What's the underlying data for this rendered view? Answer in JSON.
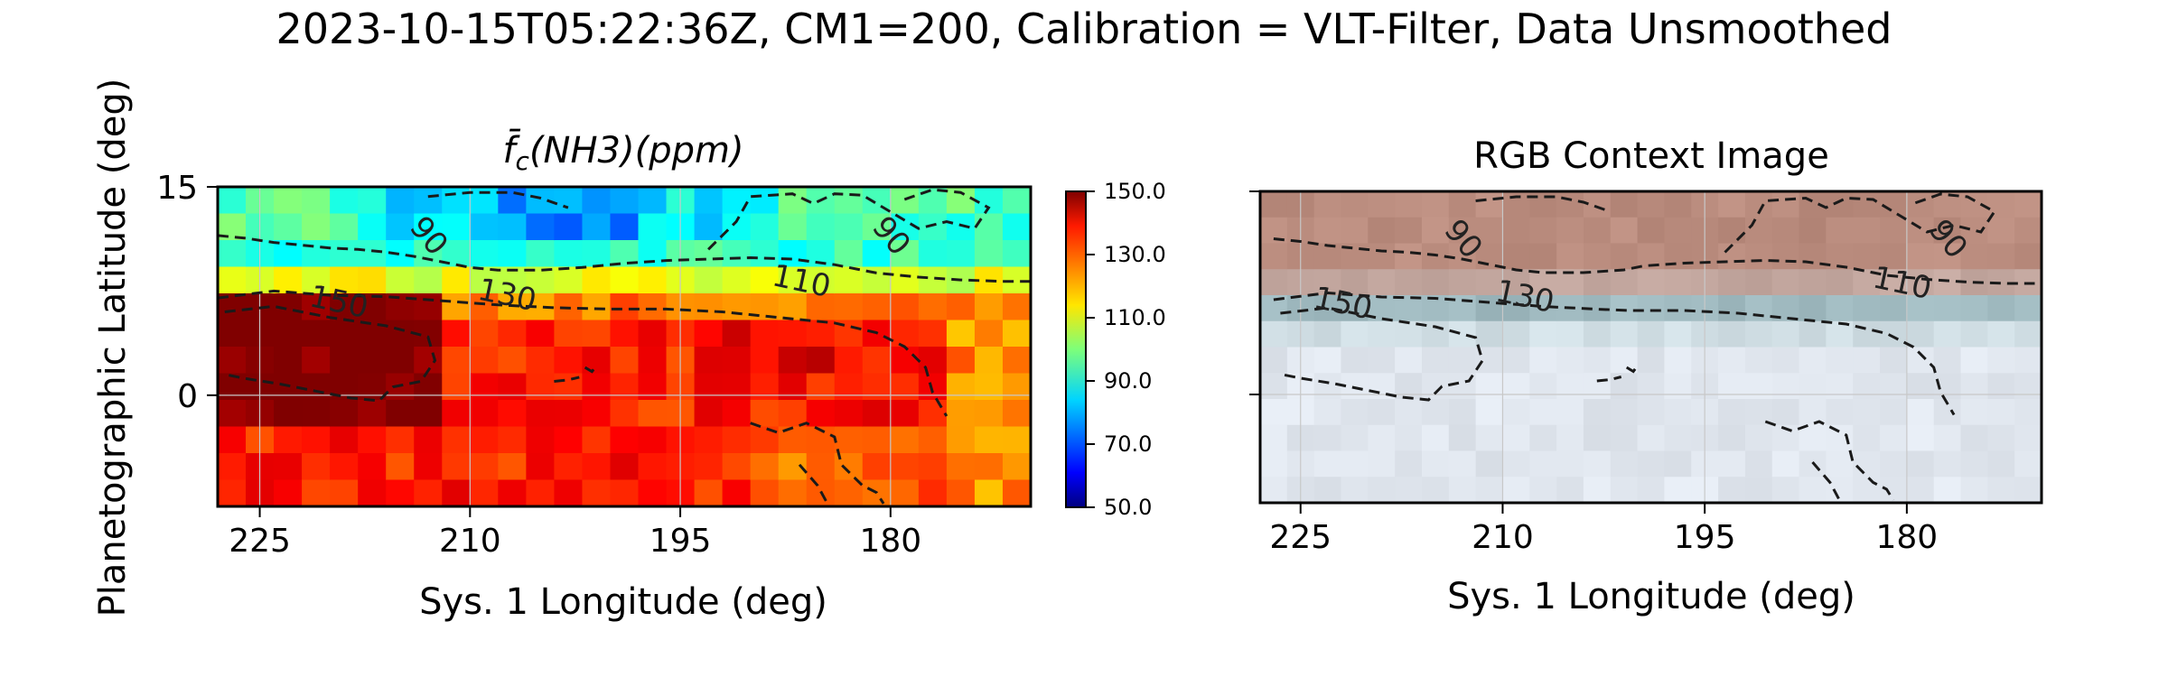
{
  "figure": {
    "suptitle": "2023-10-15T05:22:36Z, CM1=200, Calibration = VLT-Filter, Data Unsmoothed",
    "ylabel": "Planetographic Latitude (deg)"
  },
  "chart_data": [
    {
      "type": "heatmap",
      "title_main": "f̄",
      "title_sub": "c",
      "title_rest": "(NH3)(ppm)",
      "xlabel": "Sys. 1 Longitude (deg)",
      "xlim": [
        228,
        170
      ],
      "ylim": [
        -8,
        15
      ],
      "xticks": [
        "225",
        "210",
        "195",
        "180"
      ],
      "xtick_values": [
        225,
        210,
        195,
        180
      ],
      "yticks": [
        "15",
        "0"
      ],
      "ytick_values": [
        15,
        0
      ],
      "grid": true,
      "colormap": "jet",
      "colorbar": {
        "range": [
          50,
          150
        ],
        "ticks": [
          "150.0",
          "130.0",
          "110.0",
          "90.0",
          "70.0",
          "50.0"
        ],
        "tick_values": [
          150,
          130,
          110,
          90,
          70,
          50
        ]
      },
      "contour_labels": [
        {
          "text": "90",
          "x": 213.5,
          "y": 11
        },
        {
          "text": "90",
          "x": 180.5,
          "y": 11
        },
        {
          "text": "110",
          "x": 186.5,
          "y": 7.5
        },
        {
          "text": "130",
          "x": 207.5,
          "y": 6.5
        },
        {
          "text": "150",
          "x": 219.5,
          "y": 6
        }
      ],
      "contour_style": "dashed, dark gray",
      "field_description_regions": [
        {
          "value": 150,
          "area": "lat -1 to 6, lon 224 to 213"
        },
        {
          "value": 135,
          "area": "lat -8 to 6, lon 228 to 170"
        },
        {
          "value": 120,
          "area": "lat 6 to 8"
        },
        {
          "value": 105,
          "area": "lat 8 to 11"
        },
        {
          "value": 85,
          "area": "lat 11 to 15"
        },
        {
          "value": 75,
          "area": "lat 12 to 15, lon 208 to 197"
        }
      ]
    },
    {
      "type": "heatmap",
      "title": "RGB Context Image",
      "xlabel": "Sys. 1 Longitude (deg)",
      "xlim": [
        228,
        170
      ],
      "ylim": [
        -8,
        15
      ],
      "xticks": [
        "225",
        "210",
        "195",
        "180"
      ],
      "xtick_values": [
        225,
        210,
        195,
        180
      ],
      "yticks": [],
      "ytick_values": [
        15,
        0
      ],
      "grid": true,
      "contour_labels": [
        {
          "text": "90",
          "x": 213.5,
          "y": 11
        },
        {
          "text": "90",
          "x": 177.5,
          "y": 11
        },
        {
          "text": "110",
          "x": 180.5,
          "y": 7.5
        },
        {
          "text": "130",
          "x": 208.5,
          "y": 6.5
        },
        {
          "text": "150",
          "x": 222,
          "y": 6
        }
      ],
      "image_colors": {
        "top_band": "#b88a7a",
        "mid_band": "#9fb9c0",
        "lower": "#dfe6ee"
      }
    }
  ]
}
